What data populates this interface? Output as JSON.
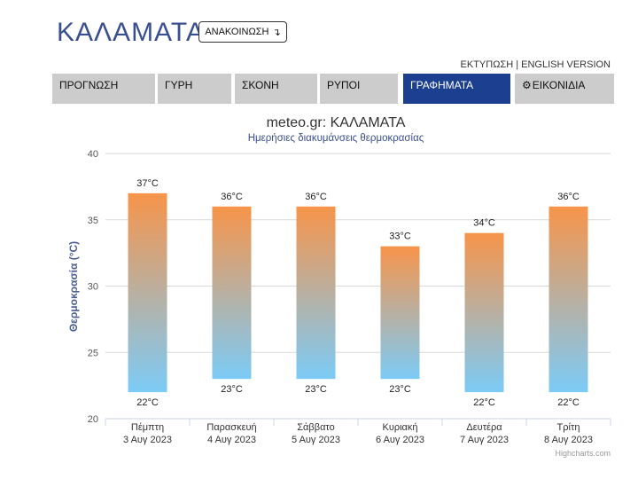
{
  "header": {
    "city": "ΚΑΛΑΜΑΤΑ",
    "announce_label": "ΑΝΑΚΟΙΝΩΣΗ",
    "announce_icon": "return-arrow-icon",
    "print_label": "ΕΚΤΥΠΩΣΗ",
    "separator": " | ",
    "english_label": "ENGLISH VERSION"
  },
  "nav": {
    "tabs": [
      {
        "label": "ΠΡΟΓΝΩΣΗ"
      },
      {
        "label": "ΓΥΡΗ"
      },
      {
        "label": "ΣΚΟΝΗ"
      },
      {
        "label": "ΡΥΠΟΙ"
      },
      {
        "label": "ΓΡΑΦΗΜΑΤΑ",
        "active": true
      },
      {
        "label": "ΕΙΚΟΝΙΔΙΑ",
        "icon": "gear-icon"
      }
    ]
  },
  "colors": {
    "active_tab": "#1c3f8f",
    "tab_bg": "#cccccc",
    "bar_top": "#f7944a",
    "bar_bottom": "#7ccbf7",
    "title": "#333333",
    "subtitle": "#3a4f8f"
  },
  "chart_data": {
    "type": "bar",
    "subtype": "columnrange",
    "title": "meteo.gr: ΚΑΛΑΜΑΤΑ",
    "subtitle": "Ημερήσιες διακυμάνσεις θερμοκρασίας",
    "ylabel": "Θερμοκρασία (°C)",
    "ylim": [
      20,
      40
    ],
    "yticks": [
      "20",
      "25",
      "30",
      "35",
      "40"
    ],
    "grid": true,
    "categories": [
      {
        "day": "Πέμπτη",
        "date": "3 Αυγ 2023"
      },
      {
        "day": "Παρασκευή",
        "date": "4 Αυγ 2023"
      },
      {
        "day": "Σάββατο",
        "date": "5 Αυγ 2023"
      },
      {
        "day": "Κυριακή",
        "date": "6 Αυγ 2023"
      },
      {
        "day": "Δευτέρα",
        "date": "7 Αυγ 2023"
      },
      {
        "day": "Τρίτη",
        "date": "8 Αυγ 2023"
      }
    ],
    "low": [
      22,
      23,
      23,
      23,
      22,
      22
    ],
    "high": [
      37,
      36,
      36,
      33,
      34,
      36
    ],
    "unit_suffix": "°C",
    "credits": "Highcharts.com"
  }
}
